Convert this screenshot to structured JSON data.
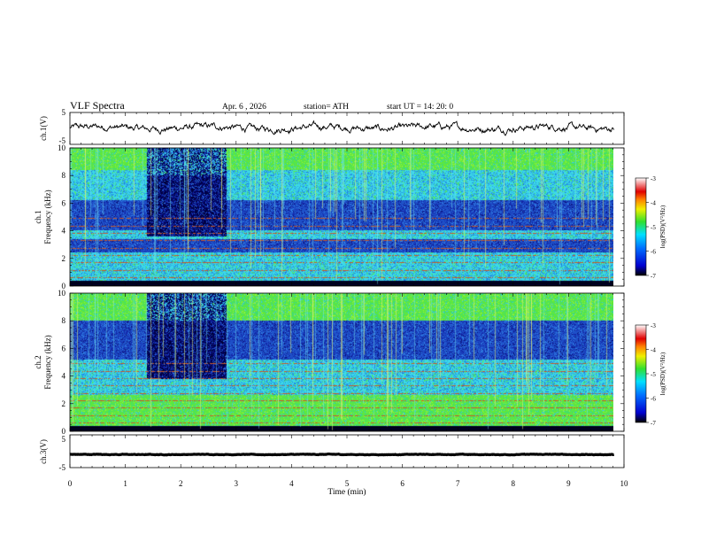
{
  "header": {
    "title": "VLF  Spectra",
    "date": "Apr. 6  , 2026",
    "station": "station= ATH",
    "start_ut": "start  UT  =   14: 20: 0"
  },
  "colors": {
    "spectro_low": "#1e4fc8",
    "spectro_mid": "#3cd8e8",
    "spectro_high": "#60e83c",
    "spectro_dark": "#000060",
    "trace": "#000000"
  },
  "chart_data": [
    {
      "id": "ch1_waveform",
      "type": "line",
      "ylabel": "ch.1(V)",
      "ylim": [
        -5,
        5
      ],
      "y_ticks": [
        "5",
        "-5"
      ],
      "xlim": [
        0,
        10
      ],
      "x_extent_min": [
        0,
        9.82
      ],
      "baseline_v": 0.2,
      "noise_amplitude_v": 1.2
    },
    {
      "id": "ch1_spectrogram",
      "type": "heatmap",
      "ylabel": "ch.1\nFrequency  (kHz)",
      "ylim": [
        0,
        10
      ],
      "y_ticks": [
        "0",
        "2",
        "4",
        "6",
        "8",
        "10"
      ],
      "xlim": [
        0,
        10
      ],
      "x_extent_min": [
        0,
        9.82
      ],
      "bands_khz": [
        {
          "range": [
            8.4,
            10
          ],
          "level": "high"
        },
        {
          "range": [
            6.2,
            8.4
          ],
          "level": "mid"
        },
        {
          "range": [
            4.0,
            6.2
          ],
          "level": "low"
        },
        {
          "range": [
            3.4,
            4.0
          ],
          "level": "mid"
        },
        {
          "range": [
            2.4,
            3.4
          ],
          "level": "low"
        },
        {
          "range": [
            0,
            2.4
          ],
          "level": "mid"
        }
      ],
      "burst_minutes": [
        1.38,
        2.82
      ],
      "burst_freq_khz": [
        3.6,
        10
      ],
      "colorbar": {
        "label": "log(PSD)(V²/Hz)",
        "range": [
          -7,
          -3
        ],
        "ticks": [
          "-3",
          "-4",
          "-5",
          "-6",
          "-7"
        ]
      }
    },
    {
      "id": "ch2_spectrogram",
      "type": "heatmap",
      "ylabel": "ch.2\nFrequency  (kHz)",
      "ylim": [
        0,
        10
      ],
      "y_ticks": [
        "0",
        "2",
        "4",
        "6",
        "8",
        "10"
      ],
      "xlim": [
        0,
        10
      ],
      "x_extent_min": [
        0,
        9.82
      ],
      "bands_khz": [
        {
          "range": [
            8.0,
            10
          ],
          "level": "high"
        },
        {
          "range": [
            5.2,
            8.0
          ],
          "level": "low"
        },
        {
          "range": [
            2.6,
            5.2
          ],
          "level": "mid"
        },
        {
          "range": [
            0,
            2.6
          ],
          "level": "high"
        }
      ],
      "burst_minutes": [
        1.38,
        2.82
      ],
      "burst_freq_khz": [
        3.8,
        10
      ],
      "colorbar": {
        "label": "log(PSD)(V²/Hz)",
        "range": [
          -7,
          -3
        ],
        "ticks": [
          "-3",
          "-4",
          "-5",
          "-6",
          "-7"
        ]
      }
    },
    {
      "id": "ch3_waveform",
      "type": "line",
      "ylabel": "ch.3(V)",
      "ylim": [
        -5,
        5
      ],
      "y_ticks": [
        "5",
        "-5"
      ],
      "xlim": [
        0,
        10
      ],
      "x_extent_min": [
        0,
        9.82
      ],
      "baseline_v": -1.0,
      "noise_amplitude_v": 0.1
    }
  ],
  "x_axis": {
    "label": "Time  (min)",
    "ticks": [
      "0",
      "1",
      "2",
      "3",
      "4",
      "5",
      "6",
      "7",
      "8",
      "9",
      "10"
    ]
  }
}
